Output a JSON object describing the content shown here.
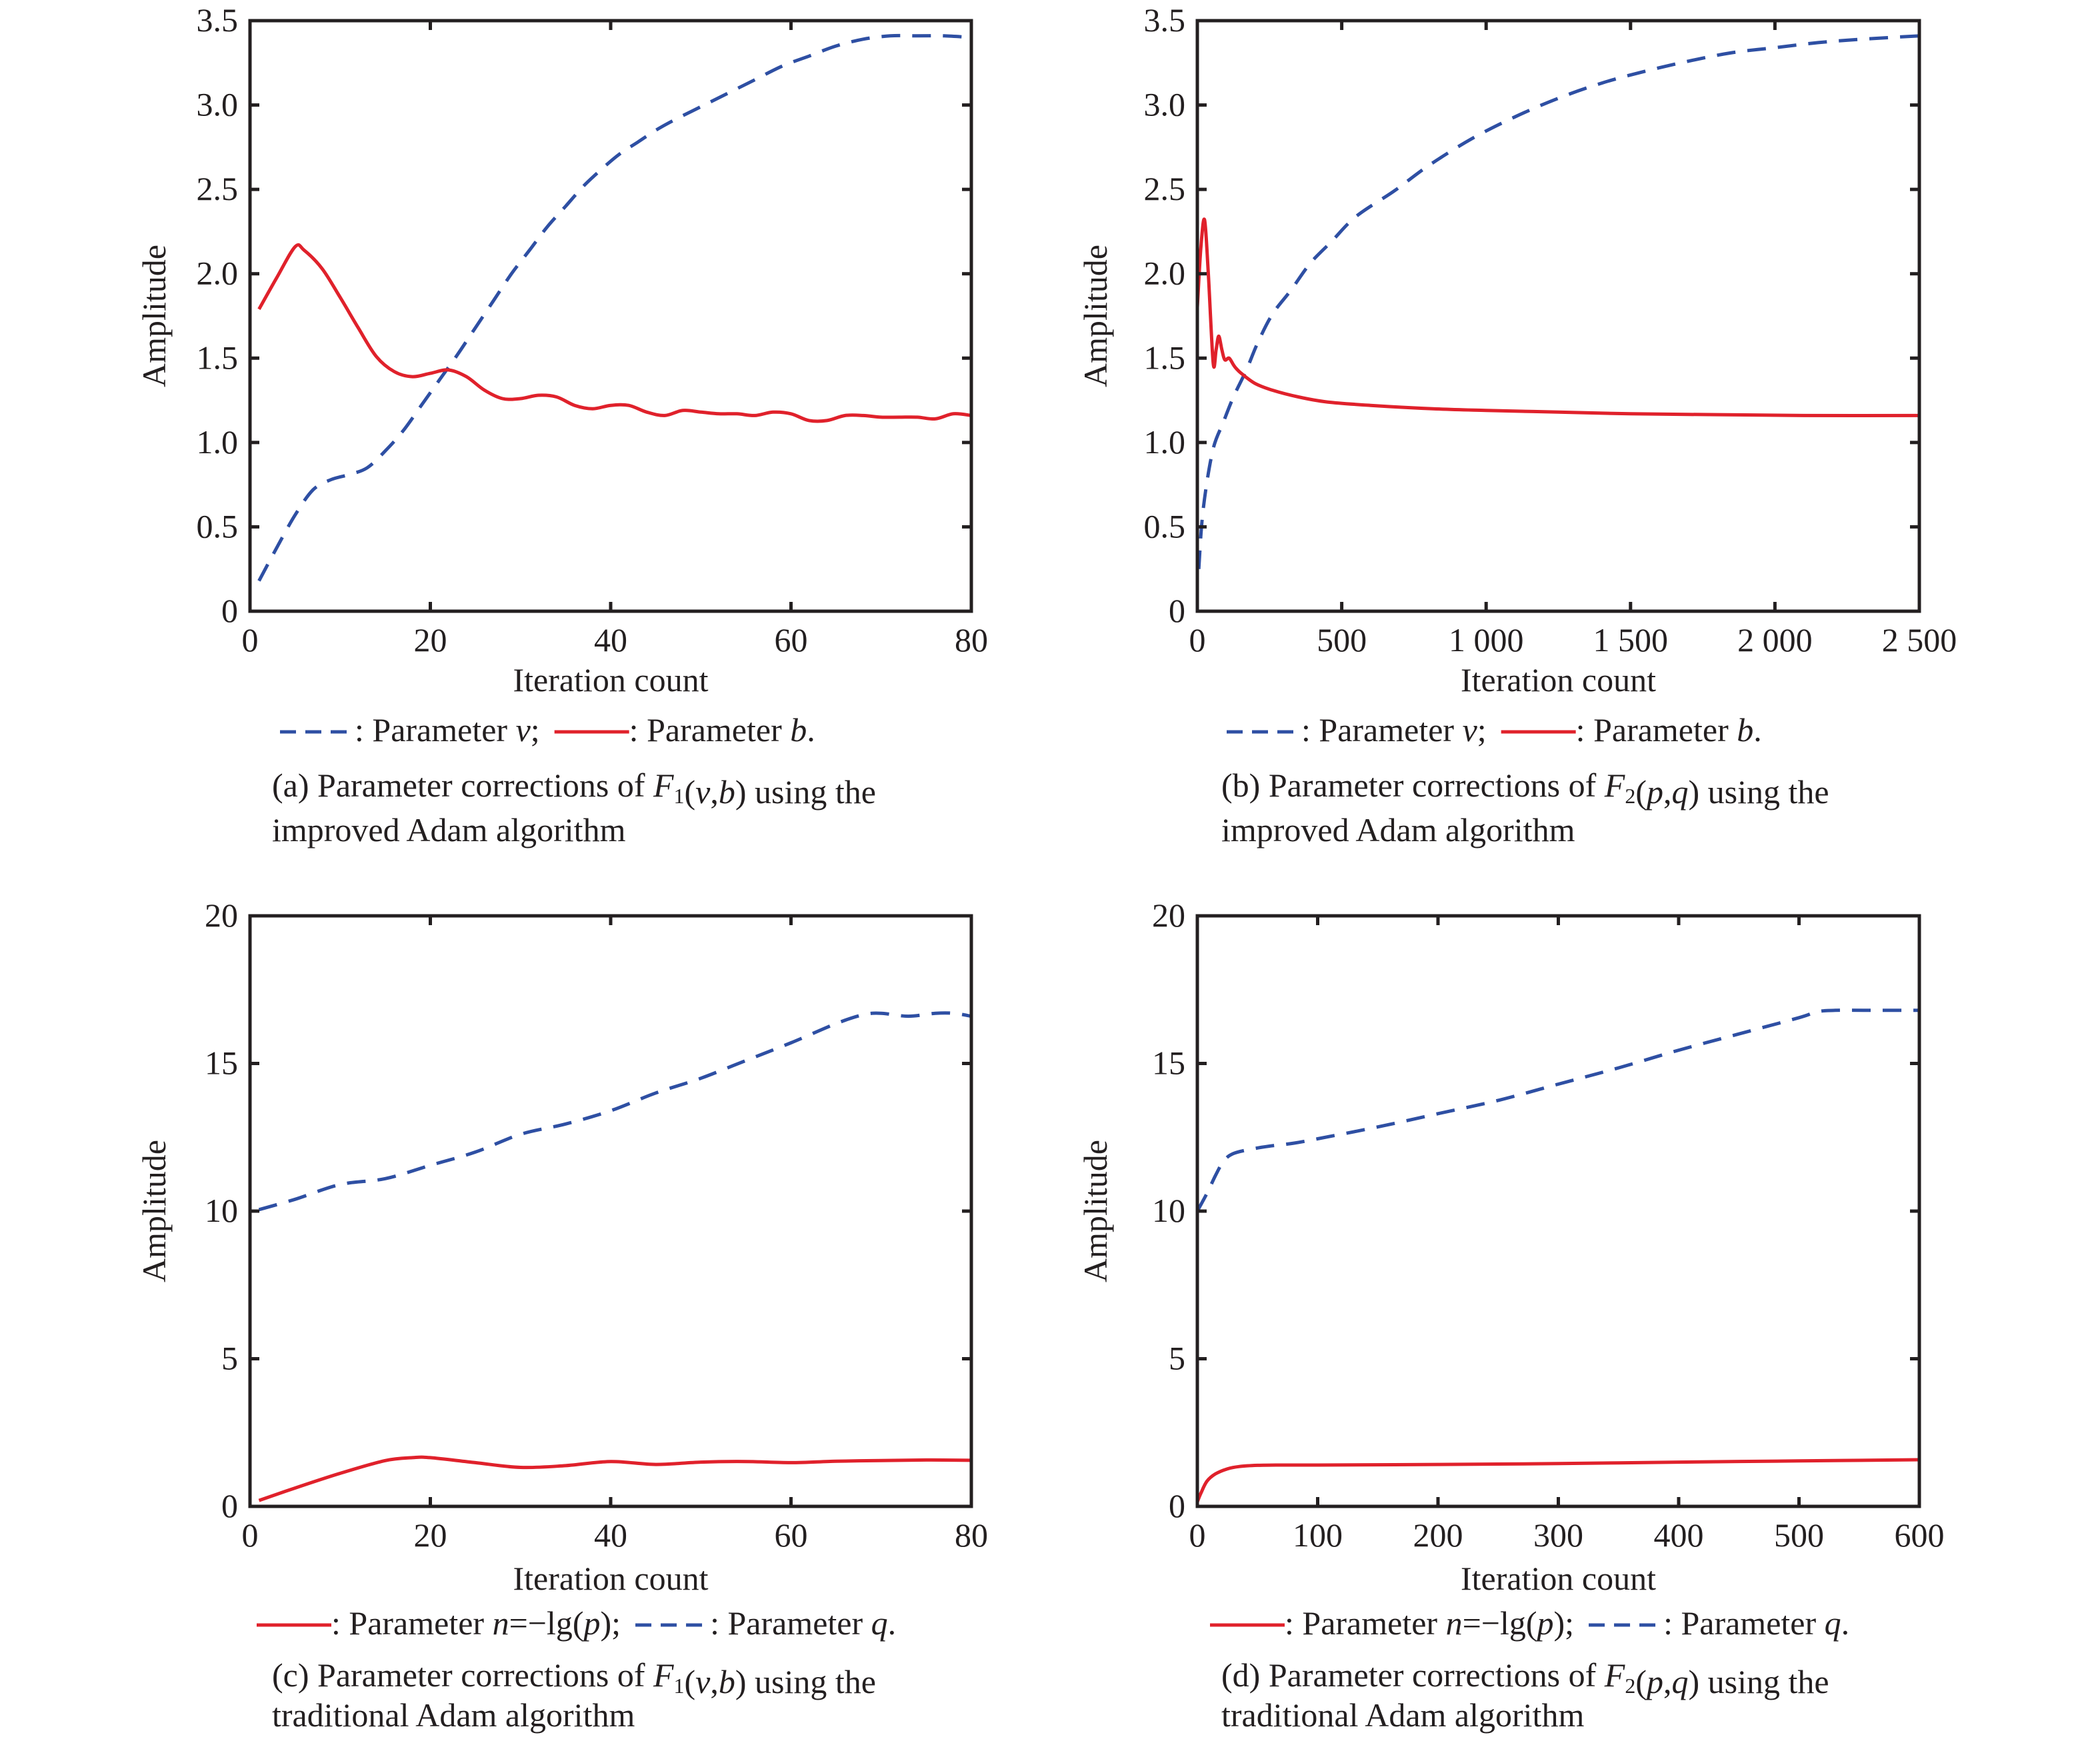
{
  "colors": {
    "dashed_series": "#2e4fa3",
    "solid_series": "#e0212b",
    "axes": "#231f20"
  },
  "chart_data": [
    {
      "id": "a",
      "type": "line",
      "xlabel": "Iteration count",
      "ylabel": "Amplitude",
      "xlim": [
        0,
        80
      ],
      "ylim": [
        0,
        3.5
      ],
      "xticks": [
        0,
        20,
        40,
        60,
        80
      ],
      "xtick_labels": [
        "0",
        "20",
        "40",
        "60",
        "80"
      ],
      "yticks": [
        0,
        0.5,
        1.0,
        1.5,
        2.0,
        2.5,
        3.0,
        3.5
      ],
      "ytick_labels": [
        "0",
        "0.5",
        "1.0",
        "1.5",
        "2.0",
        "2.5",
        "3.0",
        "3.5"
      ],
      "grid": false,
      "legend": {
        "placement": "below",
        "items": [
          {
            "style": "dashed",
            "label": ": Parameter v;"
          },
          {
            "style": "solid",
            "label": ": Parameter b."
          }
        ]
      },
      "caption": [
        "(a) Parameter corrections of F1(v,b) using the",
        "improved Adam algorithm"
      ],
      "series": [
        {
          "name": "Parameter v",
          "style": "dashed",
          "x": [
            1,
            3,
            5,
            7,
            9,
            11,
            13,
            15,
            17,
            19,
            21,
            23,
            25,
            27,
            29,
            31,
            33,
            35,
            37,
            39,
            41,
            43,
            45,
            47,
            50,
            53,
            56,
            59,
            62,
            65,
            68,
            71,
            74,
            77,
            80
          ],
          "y": [
            0.18,
            0.38,
            0.57,
            0.72,
            0.78,
            0.81,
            0.85,
            0.95,
            1.07,
            1.22,
            1.37,
            1.52,
            1.68,
            1.84,
            2.0,
            2.14,
            2.28,
            2.4,
            2.52,
            2.62,
            2.71,
            2.78,
            2.85,
            2.91,
            2.99,
            3.07,
            3.15,
            3.23,
            3.29,
            3.35,
            3.39,
            3.41,
            3.41,
            3.41,
            3.4
          ]
        },
        {
          "name": "Parameter b",
          "style": "solid",
          "x": [
            1,
            3,
            5,
            6,
            8,
            10,
            12,
            14,
            16,
            18,
            20,
            22,
            24,
            26,
            28,
            30,
            32,
            34,
            36,
            38,
            40,
            42,
            44,
            46,
            48,
            50,
            52,
            54,
            56,
            58,
            60,
            62,
            64,
            66,
            68,
            70,
            72,
            74,
            76,
            78,
            80
          ],
          "y": [
            1.79,
            1.98,
            2.16,
            2.14,
            2.03,
            1.86,
            1.68,
            1.51,
            1.42,
            1.39,
            1.41,
            1.43,
            1.39,
            1.31,
            1.26,
            1.26,
            1.28,
            1.27,
            1.22,
            1.2,
            1.22,
            1.22,
            1.18,
            1.16,
            1.19,
            1.18,
            1.17,
            1.17,
            1.16,
            1.18,
            1.17,
            1.13,
            1.13,
            1.16,
            1.16,
            1.15,
            1.15,
            1.15,
            1.14,
            1.17,
            1.16
          ]
        }
      ]
    },
    {
      "id": "b",
      "type": "line",
      "xlabel": "Iteration count",
      "ylabel": "Amplitude",
      "xlim": [
        0,
        2500
      ],
      "ylim": [
        0,
        3.5
      ],
      "xticks": [
        0,
        500,
        1000,
        1500,
        2000,
        2500
      ],
      "xtick_labels": [
        "0",
        "500",
        "1 000",
        "1 500",
        "2 000",
        "2 500"
      ],
      "yticks": [
        0,
        0.5,
        1.0,
        1.5,
        2.0,
        2.5,
        3.0,
        3.5
      ],
      "ytick_labels": [
        "0",
        "0.5",
        "1.0",
        "1.5",
        "2.0",
        "2.5",
        "3.0",
        "3.5"
      ],
      "grid": false,
      "legend": {
        "placement": "below",
        "items": [
          {
            "style": "dashed",
            "label": ": Parameter v;"
          },
          {
            "style": "solid",
            "label": ": Parameter b."
          }
        ]
      },
      "caption": [
        "(b) Parameter corrections of F2(p,q) using the",
        "improved Adam algorithm"
      ],
      "series": [
        {
          "name": "Parameter v",
          "style": "dashed",
          "x": [
            5,
            20,
            53,
            90,
            125,
            170,
            209,
            260,
            323,
            390,
            464,
            550,
            681,
            800,
            950,
            1100,
            1250,
            1400,
            1550,
            1700,
            1850,
            2000,
            2150,
            2300,
            2500
          ],
          "y": [
            0.25,
            0.6,
            0.95,
            1.12,
            1.27,
            1.43,
            1.59,
            1.76,
            1.9,
            2.06,
            2.19,
            2.34,
            2.49,
            2.64,
            2.8,
            2.93,
            3.04,
            3.13,
            3.2,
            3.26,
            3.31,
            3.34,
            3.37,
            3.39,
            3.41
          ]
        },
        {
          "name": "Parameter b",
          "style": "solid",
          "x": [
            0,
            12,
            25,
            38,
            55,
            65,
            74,
            85,
            95,
            110,
            125,
            134,
            152,
            200,
            260,
            350,
            450,
            600,
            815,
            1000,
            1250,
            1500,
            1800,
            2100,
            2500
          ],
          "y": [
            1.8,
            2.15,
            2.32,
            2.0,
            1.47,
            1.55,
            1.63,
            1.55,
            1.49,
            1.5,
            1.46,
            1.44,
            1.41,
            1.35,
            1.31,
            1.27,
            1.24,
            1.22,
            1.2,
            1.19,
            1.18,
            1.17,
            1.165,
            1.16,
            1.16
          ]
        }
      ]
    },
    {
      "id": "c",
      "type": "line",
      "xlabel": "Iteration count",
      "ylabel": "Amplitude",
      "xlim": [
        0,
        80
      ],
      "ylim": [
        0,
        20
      ],
      "xticks": [
        0,
        20,
        40,
        60,
        80
      ],
      "xtick_labels": [
        "0",
        "20",
        "40",
        "60",
        "80"
      ],
      "yticks": [
        0,
        5,
        10,
        15,
        20
      ],
      "ytick_labels": [
        "0",
        "5",
        "10",
        "15",
        "20"
      ],
      "grid": false,
      "legend": {
        "placement": "below",
        "items": [
          {
            "style": "solid",
            "label": ": Parameter n=−lg(p);"
          },
          {
            "style": "dashed",
            "label": ": Parameter q."
          }
        ]
      },
      "caption": [
        "(c) Parameter corrections of F1(v,b) using the",
        "traditional Adam algorithm"
      ],
      "series": [
        {
          "name": "Parameter q",
          "style": "dashed",
          "x": [
            1,
            5,
            10,
            15,
            20,
            25,
            30,
            35,
            40,
            45,
            50,
            55,
            60,
            65,
            68,
            70,
            73,
            76,
            78,
            80
          ],
          "y": [
            10.05,
            10.4,
            10.9,
            11.1,
            11.55,
            12.0,
            12.6,
            12.95,
            13.4,
            14.0,
            14.5,
            15.1,
            15.7,
            16.35,
            16.65,
            16.7,
            16.6,
            16.7,
            16.7,
            16.6
          ]
        },
        {
          "name": "Parameter n=−lg(p)",
          "style": "solid",
          "x": [
            1,
            5,
            10,
            15,
            18,
            20,
            25,
            30,
            35,
            40,
            45,
            50,
            55,
            60,
            65,
            70,
            75,
            80
          ],
          "y": [
            0.2,
            0.62,
            1.12,
            1.55,
            1.65,
            1.65,
            1.48,
            1.32,
            1.38,
            1.52,
            1.42,
            1.5,
            1.52,
            1.48,
            1.53,
            1.55,
            1.57,
            1.56
          ]
        }
      ]
    },
    {
      "id": "d",
      "type": "line",
      "xlabel": "Iteration count",
      "ylabel": "Amplitude",
      "xlim": [
        0,
        600
      ],
      "ylim": [
        0,
        20
      ],
      "xticks": [
        0,
        100,
        200,
        300,
        400,
        500,
        600
      ],
      "xtick_labels": [
        "0",
        "100",
        "200",
        "300",
        "400",
        "500",
        "600"
      ],
      "yticks": [
        0,
        5,
        10,
        15,
        20
      ],
      "ytick_labels": [
        "0",
        "5",
        "10",
        "15",
        "20"
      ],
      "grid": false,
      "legend": {
        "placement": "below",
        "items": [
          {
            "style": "solid",
            "label": ": Parameter n=−lg(p);"
          },
          {
            "style": "dashed",
            "label": ": Parameter q."
          }
        ]
      },
      "caption": [
        "(d) Parameter corrections of F2(p,q) using the",
        "traditional Adam algorithm"
      ],
      "series": [
        {
          "name": "Parameter q",
          "style": "dashed",
          "x": [
            0,
            8,
            15,
            22,
            30,
            45,
            60,
            80,
            100,
            150,
            200,
            250,
            300,
            350,
            400,
            450,
            500,
            515,
            530,
            560,
            600
          ],
          "y": [
            10.0,
            10.6,
            11.2,
            11.7,
            11.95,
            12.1,
            12.2,
            12.3,
            12.45,
            12.85,
            13.3,
            13.75,
            14.3,
            14.85,
            15.45,
            16.0,
            16.55,
            16.75,
            16.8,
            16.8,
            16.8
          ]
        },
        {
          "name": "Parameter n=−lg(p)",
          "style": "solid",
          "x": [
            0,
            3,
            8,
            15,
            25,
            35,
            50,
            70,
            100,
            200,
            300,
            400,
            500,
            600
          ],
          "y": [
            0.15,
            0.45,
            0.85,
            1.1,
            1.27,
            1.35,
            1.39,
            1.4,
            1.4,
            1.42,
            1.45,
            1.5,
            1.54,
            1.58
          ]
        }
      ]
    }
  ]
}
